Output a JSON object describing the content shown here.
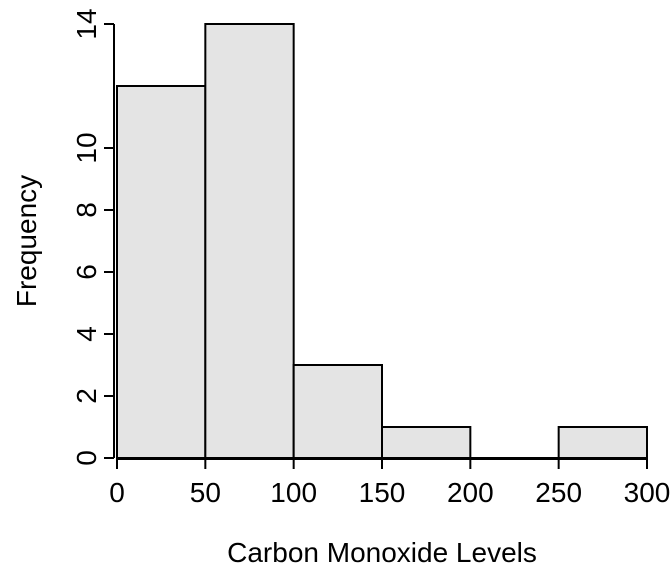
{
  "chart_data": {
    "type": "bar",
    "title": "",
    "xlabel": "Carbon Monoxide Levels",
    "ylabel": "Frequency",
    "bins": [
      {
        "start": 0,
        "end": 50,
        "count": 12
      },
      {
        "start": 50,
        "end": 100,
        "count": 14
      },
      {
        "start": 100,
        "end": 150,
        "count": 3
      },
      {
        "start": 150,
        "end": 200,
        "count": 1
      },
      {
        "start": 200,
        "end": 250,
        "count": 0
      },
      {
        "start": 250,
        "end": 300,
        "count": 1
      }
    ],
    "xlim": [
      0,
      300
    ],
    "ylim": [
      0,
      14
    ],
    "x_ticks": [
      "0",
      "50",
      "100",
      "150",
      "200",
      "250",
      "300"
    ],
    "y_ticks": [
      "0",
      "2",
      "4",
      "6",
      "8",
      "10",
      "14"
    ],
    "grid": false,
    "bar_fill": "#e4e4e4",
    "bar_stroke": "#000000"
  }
}
